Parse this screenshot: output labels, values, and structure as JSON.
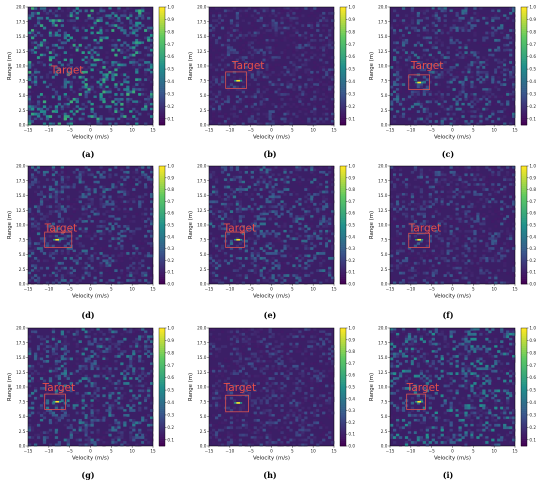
{
  "figure": {
    "colors": {
      "background": "#3b1f66",
      "target_text": "#e8504a",
      "target_box": "#d9534f",
      "colormap": [
        "#440154",
        "#3b528b",
        "#21918c",
        "#5ec962",
        "#fde725"
      ]
    }
  },
  "chart_data": [
    {
      "type": "heatmap",
      "caption": "(a)",
      "xlabel": "Velocity (m/s)",
      "ylabel": "Range (m)",
      "xlim": [
        -15,
        15
      ],
      "ylim": [
        0,
        20
      ],
      "x_ticks": [
        "−15",
        "−10",
        "−5",
        "0",
        "5",
        "10",
        "15"
      ],
      "y_ticks": [
        "0.0",
        "2.5",
        "5.0",
        "7.5",
        "10.0",
        "12.5",
        "15.0",
        "17.5",
        "20.0"
      ],
      "colorbar_ticks": [
        "0.1",
        "0.2",
        "0.3",
        "0.4",
        "0.5",
        "0.6",
        "0.7",
        "0.8",
        "0.9",
        "1.0"
      ],
      "noise_level": 0.55,
      "annotation": {
        "text": "Target",
        "x": -9.5,
        "y": 8.7,
        "box": null
      },
      "target_peak": null
    },
    {
      "type": "heatmap",
      "caption": "(b)",
      "xlabel": "Velocity (m/s)",
      "ylabel": "Range (m)",
      "xlim": [
        -15,
        15
      ],
      "ylim": [
        0,
        20
      ],
      "x_ticks": [
        "−15",
        "−10",
        "−5",
        "0",
        "5",
        "10",
        "15"
      ],
      "y_ticks": [
        "0.0",
        "2.5",
        "5.0",
        "7.5",
        "10.0",
        "12.5",
        "15.0",
        "17.5",
        "20.0"
      ],
      "colorbar_ticks": [
        "0.1",
        "0.2",
        "0.3",
        "0.4",
        "0.5",
        "0.6",
        "0.7",
        "0.8",
        "0.9",
        "1.0"
      ],
      "noise_level": 0.18,
      "annotation": {
        "text": "Target",
        "x": -9.5,
        "y": 9.5,
        "box": [
          -11,
          -6,
          6.2,
          9
        ]
      },
      "target_peak": {
        "x": -8,
        "y": 7.5
      }
    },
    {
      "type": "heatmap",
      "caption": "(c)",
      "xlabel": "Velocity (m/s)",
      "ylabel": "Range (m)",
      "xlim": [
        -15,
        15
      ],
      "ylim": [
        0,
        20
      ],
      "x_ticks": [
        "−15",
        "−10",
        "−5",
        "0",
        "5",
        "10",
        "15"
      ],
      "y_ticks": [
        "0.0",
        "2.5",
        "5.0",
        "7.5",
        "10.0",
        "12.5",
        "15.0",
        "17.5",
        "20.0"
      ],
      "colorbar_ticks": [
        "0.1",
        "0.2",
        "0.3",
        "0.4",
        "0.5",
        "0.6",
        "0.7",
        "0.8",
        "0.9",
        "1.0"
      ],
      "noise_level": 0.3,
      "annotation": {
        "text": "Target",
        "x": -10,
        "y": 9.5,
        "box": [
          -10.5,
          -5.5,
          6,
          8.5
        ]
      },
      "target_peak": {
        "x": -8,
        "y": 7.2
      }
    },
    {
      "type": "heatmap",
      "caption": "(d)",
      "xlabel": "Velocity (m/s)",
      "ylabel": "Range (m)",
      "xlim": [
        -15,
        15
      ],
      "ylim": [
        0,
        20
      ],
      "x_ticks": [
        "−15",
        "−10",
        "−5",
        "0",
        "5",
        "10",
        "15"
      ],
      "y_ticks": [
        "0.0",
        "2.5",
        "5.0",
        "7.5",
        "10.0",
        "12.5",
        "15.0",
        "17.5",
        "20.0"
      ],
      "colorbar_ticks": [
        "0.0",
        "0.1",
        "0.2",
        "0.3",
        "0.4",
        "0.5",
        "0.6",
        "0.7",
        "0.8",
        "0.9",
        "1.0"
      ],
      "noise_level": 0.3,
      "annotation": {
        "text": "Target",
        "x": -11,
        "y": 8.9,
        "box": [
          -11,
          -4.5,
          6.2,
          8.8
        ]
      },
      "target_peak": {
        "x": -8,
        "y": 7.5
      }
    },
    {
      "type": "heatmap",
      "caption": "(e)",
      "xlabel": "Velocity (m/s)",
      "ylabel": "Range (m)",
      "xlim": [
        -15,
        15
      ],
      "ylim": [
        0,
        20
      ],
      "x_ticks": [
        "−15",
        "−10",
        "−5",
        "0",
        "5",
        "10",
        "15"
      ],
      "y_ticks": [
        "0.0",
        "2.5",
        "5.0",
        "7.5",
        "10.0",
        "12.5",
        "15.0",
        "17.5",
        "20.0"
      ],
      "colorbar_ticks": [
        "0.0",
        "0.1",
        "0.2",
        "0.3",
        "0.4",
        "0.5",
        "0.6",
        "0.7",
        "0.8",
        "0.9",
        "1.0"
      ],
      "noise_level": 0.3,
      "annotation": {
        "text": "Target",
        "x": -11.5,
        "y": 8.9,
        "box": [
          -11,
          -6.5,
          6.2,
          8.8
        ]
      },
      "target_peak": {
        "x": -8,
        "y": 7.5
      }
    },
    {
      "type": "heatmap",
      "caption": "(f)",
      "xlabel": "Velocity (m/s)",
      "ylabel": "Range (m)",
      "xlim": [
        -15,
        15
      ],
      "ylim": [
        0,
        20
      ],
      "x_ticks": [
        "−15",
        "−10",
        "−5",
        "0",
        "5",
        "10",
        "15"
      ],
      "y_ticks": [
        "0.0",
        "2.5",
        "5.0",
        "7.5",
        "10.0",
        "12.5",
        "15.0",
        "17.5",
        "20.0"
      ],
      "colorbar_ticks": [
        "0.0",
        "0.1",
        "0.2",
        "0.3",
        "0.4",
        "0.5",
        "0.6",
        "0.7",
        "0.8",
        "0.9",
        "1.0"
      ],
      "noise_level": 0.22,
      "annotation": {
        "text": "Target",
        "x": -10.5,
        "y": 8.9,
        "box": [
          -10.5,
          -5.5,
          6.2,
          8.6
        ]
      },
      "target_peak": {
        "x": -8,
        "y": 7.5
      }
    },
    {
      "type": "heatmap",
      "caption": "(g)",
      "xlabel": "Velocity (m/s)",
      "ylabel": "Range (m)",
      "xlim": [
        -15,
        15
      ],
      "ylim": [
        0,
        20
      ],
      "x_ticks": [
        "−15",
        "−10",
        "−5",
        "0",
        "5",
        "10",
        "15"
      ],
      "y_ticks": [
        "0.0",
        "2.5",
        "5.0",
        "7.5",
        "10.0",
        "12.5",
        "15.0",
        "17.5",
        "20.0"
      ],
      "colorbar_ticks": [
        "0.1",
        "0.2",
        "0.3",
        "0.4",
        "0.5",
        "0.6",
        "0.7",
        "0.8",
        "0.9",
        "1.0"
      ],
      "noise_level": 0.35,
      "annotation": {
        "text": "Target",
        "x": -11.5,
        "y": 9.3,
        "box": [
          -11,
          -6,
          6.2,
          8.8
        ]
      },
      "target_peak": {
        "x": -8,
        "y": 7.5
      }
    },
    {
      "type": "heatmap",
      "caption": "(h)",
      "xlabel": "Velocity (m/s)",
      "ylabel": "Range (m)",
      "xlim": [
        -15,
        15
      ],
      "ylim": [
        0,
        20
      ],
      "x_ticks": [
        "−15",
        "−10",
        "−5",
        "0",
        "5",
        "10",
        "15"
      ],
      "y_ticks": [
        "0.0",
        "2.5",
        "5.0",
        "7.5",
        "10.0",
        "12.5",
        "15.0",
        "17.5",
        "20.0"
      ],
      "colorbar_ticks": [
        "0.0",
        "0.1",
        "0.2",
        "0.3",
        "0.4",
        "0.5",
        "0.6",
        "0.7",
        "0.8",
        "0.9",
        "1.0"
      ],
      "noise_level": 0.18,
      "annotation": {
        "text": "Target",
        "x": -11.5,
        "y": 9.3,
        "box": [
          -11,
          -5.5,
          5.8,
          8.6
        ]
      },
      "target_peak": {
        "x": -8,
        "y": 7.3
      }
    },
    {
      "type": "heatmap",
      "caption": "(i)",
      "xlabel": "Velocity (m/s)",
      "ylabel": "Range (m)",
      "xlim": [
        -15,
        15
      ],
      "ylim": [
        0,
        20
      ],
      "x_ticks": [
        "−15",
        "−10",
        "−5",
        "0",
        "5",
        "10",
        "15"
      ],
      "y_ticks": [
        "0.0",
        "2.5",
        "5.0",
        "7.5",
        "10.0",
        "12.5",
        "15.0",
        "17.5",
        "20.0"
      ],
      "colorbar_ticks": [
        "0.1",
        "0.2",
        "0.3",
        "0.4",
        "0.5",
        "0.6",
        "0.7",
        "0.8",
        "0.9",
        "1.0"
      ],
      "noise_level": 0.42,
      "annotation": {
        "text": "Target",
        "x": -11,
        "y": 9.3,
        "box": [
          -11,
          -6.5,
          6.2,
          8.8
        ]
      },
      "target_peak": {
        "x": -8,
        "y": 7.5
      }
    }
  ]
}
